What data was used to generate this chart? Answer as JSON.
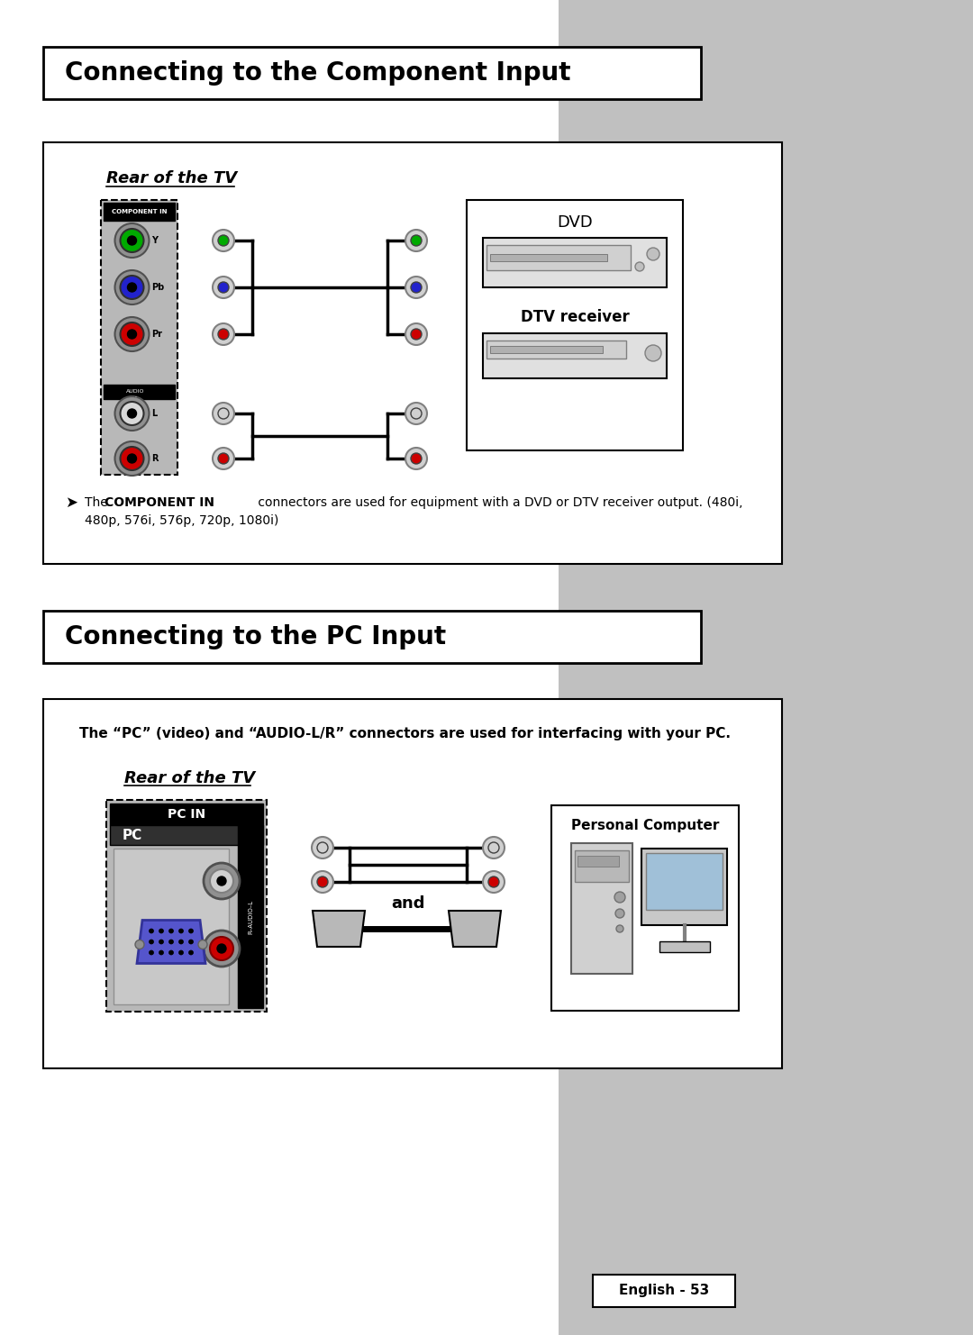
{
  "title1": "Connecting to the Component Input",
  "title2": "Connecting to the PC Input",
  "rear_tv_label": "Rear of the TV",
  "dvd_label": "DVD",
  "dtv_label": "DTV receiver",
  "pc_in_label": "PC IN",
  "pc_label": "PC",
  "personal_computer_label": "Personal Computer",
  "component_note_bold": "COMPONENT IN",
  "component_note_pre": "The ",
  "component_note_post": " connectors are used for equipment with a DVD or DTV receiver output. (480i,",
  "component_note_line2": "480p, 576i, 576p, 720p, 1080i)",
  "pc_note": "The “PC” (video) and “AUDIO-L/R” connectors are used for interfacing with your PC.",
  "page_label": "English - 53",
  "bg_color": "#ffffff",
  "gray_col_color": "#c0c0c0",
  "green_color": "#00aa00",
  "blue_color": "#2222cc",
  "red_color": "#cc0000",
  "white_color": "#ffffff",
  "black_color": "#000000"
}
